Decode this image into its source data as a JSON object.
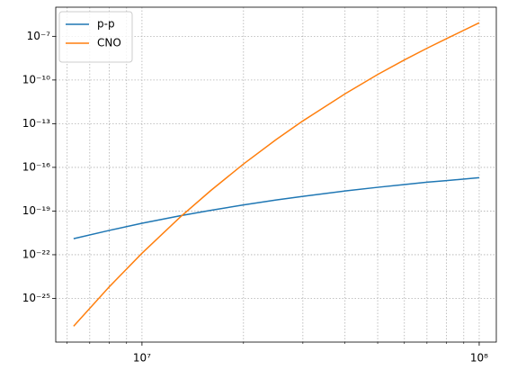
{
  "chart_data": {
    "type": "line",
    "x": [
      6270000,
      8000000,
      10000000,
      13000000,
      16000000,
      20000000,
      25000000,
      30000000,
      40000000,
      50000000,
      60000000,
      70000000,
      80000000,
      100000000
    ],
    "series": [
      {
        "name": "p-p",
        "color": "#1f77b4",
        "values": [
          1.26e-21,
          4.68e-21,
          1.45e-20,
          4.79e-20,
          1.12e-19,
          2.63e-19,
          5.75e-19,
          1.02e-18,
          2.4e-18,
          4.27e-18,
          6.61e-18,
          9.55e-18,
          1.23e-17,
          1.95e-17
        ]
      },
      {
        "name": "CNO",
        "color": "#ff7f0e",
        "values": [
          1.23e-27,
          6.31e-25,
          1.26e-22,
          3.98e-20,
          2.57e-18,
          1.7e-16,
          8.13e-15,
          1.55e-13,
          1.12e-11,
          2.4e-10,
          2.4e-09,
          1.51e-08,
          6.92e-08,
          8.51e-07
        ]
      }
    ],
    "xlog": true,
    "ylog": true,
    "xlim": [
      5550000,
      112400000
    ],
    "ylim": [
      1e-28,
      1e-05
    ],
    "xticks": [
      {
        "value": 10000000,
        "label": "10⁷"
      },
      {
        "value": 100000000,
        "label": "10⁸"
      }
    ],
    "xminorticks": [
      6000000,
      7000000,
      8000000,
      9000000,
      20000000,
      30000000,
      40000000,
      50000000,
      60000000,
      70000000,
      80000000,
      90000000
    ],
    "yticks": [
      {
        "value": 1e-25,
        "label": "10⁻²⁵"
      },
      {
        "value": 1e-22,
        "label": "10⁻²²"
      },
      {
        "value": 1e-19,
        "label": "10⁻¹⁹"
      },
      {
        "value": 1e-16,
        "label": "10⁻¹⁶"
      },
      {
        "value": 1e-13,
        "label": "10⁻¹³"
      },
      {
        "value": 1e-10,
        "label": "10⁻¹⁰"
      },
      {
        "value": 1e-07,
        "label": "10⁻⁷"
      }
    ],
    "grid": true,
    "legend": "upper left"
  }
}
